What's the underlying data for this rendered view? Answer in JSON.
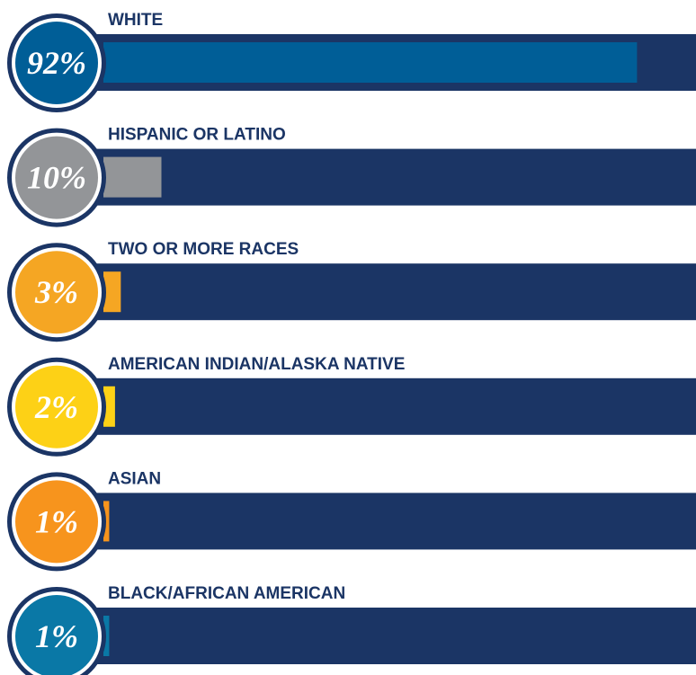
{
  "chart_data": {
    "type": "bar",
    "categories": [
      "WHITE",
      "HISPANIC OR LATINO",
      "TWO OR MORE RACES",
      "AMERICAN INDIAN/ALASKA NATIVE",
      "ASIAN",
      "BLACK/AFRICAN AMERICAN"
    ],
    "values": [
      92,
      10,
      3,
      2,
      1,
      1
    ],
    "value_labels": [
      "92%",
      "10%",
      "3%",
      "2%",
      "1%",
      "1%"
    ],
    "colors": [
      "#005e97",
      "#939598",
      "#f5a623",
      "#fdd116",
      "#f7941d",
      "#0a78a6"
    ],
    "track_color": "#1b3565"
  }
}
